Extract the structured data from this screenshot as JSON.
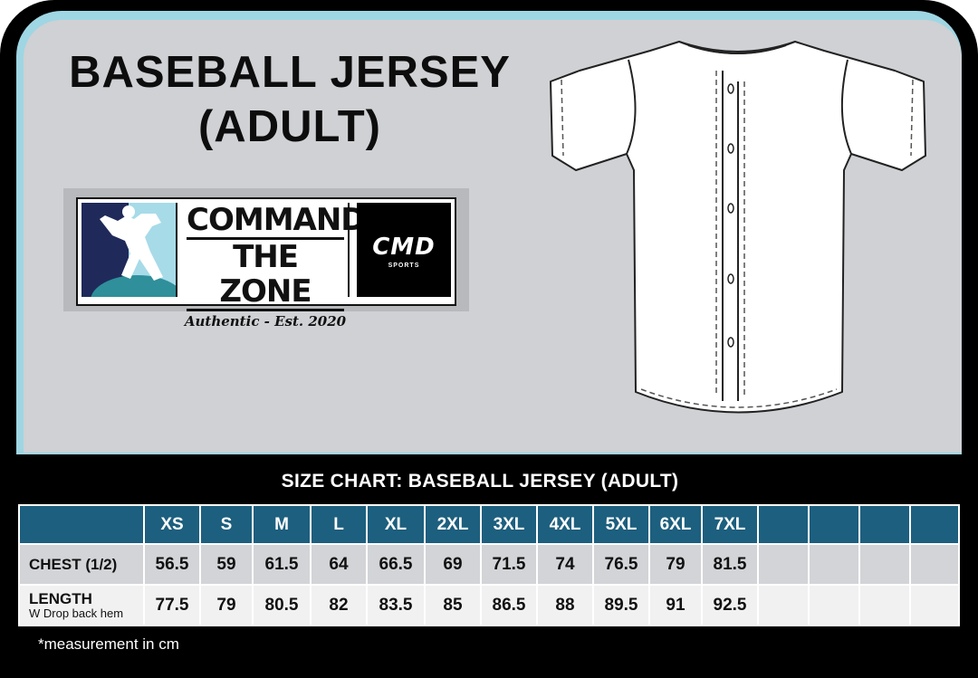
{
  "title": {
    "line1": "BASEBALL JERSEY",
    "line2": "(ADULT)"
  },
  "logo": {
    "line1": "COMMAND",
    "line2": "THE ZONE",
    "tagline": "Authentic - Est. 2020",
    "brand": "CMD",
    "brand_sub": "SPORTS"
  },
  "size_chart": {
    "title": "SIZE CHART:  BASEBALL JERSEY (ADULT)",
    "sizes": [
      "XS",
      "S",
      "M",
      "L",
      "XL",
      "2XL",
      "3XL",
      "4XL",
      "5XL",
      "6XL",
      "7XL"
    ],
    "rows": [
      {
        "label": "CHEST (1/2)",
        "sublabel": "",
        "values": [
          "56.5",
          "59",
          "61.5",
          "64",
          "66.5",
          "69",
          "71.5",
          "74",
          "76.5",
          "79",
          "81.5"
        ]
      },
      {
        "label": "LENGTH",
        "sublabel": "W Drop back hem",
        "values": [
          "77.5",
          "79",
          "80.5",
          "82",
          "83.5",
          "85",
          "86.5",
          "88",
          "89.5",
          "91",
          "92.5"
        ]
      }
    ],
    "note": "*measurement in cm"
  },
  "colors": {
    "header_bg": "#1d5f7e",
    "frame": "#000000",
    "panel": "#cfd1d4",
    "accent": "#9fd6e3"
  }
}
